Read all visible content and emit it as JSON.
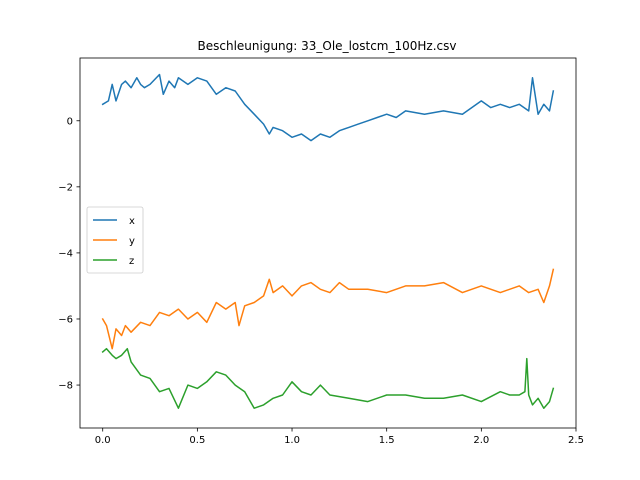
{
  "chart_data": {
    "type": "line",
    "title": "Beschleunigung: 33_Ole_lostcm_100Hz.csv",
    "xlabel": "",
    "ylabel": "",
    "xlim": [
      -0.12,
      2.5
    ],
    "ylim": [
      -9.3,
      1.9
    ],
    "xticks": [
      0.0,
      0.5,
      1.0,
      1.5,
      2.0,
      2.5
    ],
    "xtick_labels": [
      "0.0",
      "0.5",
      "1.0",
      "1.5",
      "2.0",
      "2.5"
    ],
    "yticks": [
      0,
      -2,
      -4,
      -6,
      -8
    ],
    "ytick_labels": [
      "0",
      "−2",
      "−4",
      "−6",
      "−8"
    ],
    "grid": false,
    "legend": {
      "placement": "center-left"
    },
    "series": [
      {
        "name": "x",
        "color": "#1f77b4",
        "x": [
          0.0,
          0.03,
          0.05,
          0.07,
          0.1,
          0.12,
          0.15,
          0.18,
          0.2,
          0.22,
          0.25,
          0.3,
          0.32,
          0.35,
          0.38,
          0.4,
          0.45,
          0.5,
          0.55,
          0.6,
          0.65,
          0.7,
          0.75,
          0.8,
          0.85,
          0.88,
          0.9,
          0.95,
          1.0,
          1.05,
          1.1,
          1.15,
          1.2,
          1.25,
          1.3,
          1.35,
          1.4,
          1.45,
          1.5,
          1.55,
          1.6,
          1.7,
          1.8,
          1.9,
          2.0,
          2.05,
          2.1,
          2.15,
          2.2,
          2.25,
          2.27,
          2.3,
          2.33,
          2.36,
          2.38
        ],
        "y": [
          0.5,
          0.6,
          1.1,
          0.6,
          1.1,
          1.2,
          1.0,
          1.3,
          1.1,
          1.0,
          1.1,
          1.4,
          0.8,
          1.2,
          1.0,
          1.3,
          1.1,
          1.3,
          1.2,
          0.8,
          1.0,
          0.9,
          0.5,
          0.2,
          -0.1,
          -0.4,
          -0.2,
          -0.3,
          -0.5,
          -0.4,
          -0.6,
          -0.4,
          -0.5,
          -0.3,
          -0.2,
          -0.1,
          0.0,
          0.1,
          0.2,
          0.1,
          0.3,
          0.2,
          0.3,
          0.2,
          0.6,
          0.4,
          0.5,
          0.4,
          0.5,
          0.3,
          1.3,
          0.2,
          0.5,
          0.3,
          0.9
        ]
      },
      {
        "name": "y",
        "color": "#ff7f0e",
        "x": [
          0.0,
          0.02,
          0.05,
          0.07,
          0.1,
          0.12,
          0.15,
          0.2,
          0.25,
          0.3,
          0.35,
          0.4,
          0.45,
          0.5,
          0.55,
          0.6,
          0.65,
          0.7,
          0.72,
          0.75,
          0.8,
          0.85,
          0.88,
          0.9,
          0.95,
          1.0,
          1.05,
          1.1,
          1.15,
          1.2,
          1.25,
          1.3,
          1.4,
          1.5,
          1.6,
          1.7,
          1.8,
          1.9,
          2.0,
          2.1,
          2.2,
          2.25,
          2.3,
          2.33,
          2.36,
          2.38
        ],
        "y": [
          -6.0,
          -6.2,
          -6.9,
          -6.3,
          -6.5,
          -6.2,
          -6.4,
          -6.1,
          -6.2,
          -5.8,
          -5.9,
          -5.7,
          -6.0,
          -5.8,
          -6.1,
          -5.5,
          -5.7,
          -5.5,
          -6.2,
          -5.6,
          -5.5,
          -5.3,
          -4.8,
          -5.2,
          -5.0,
          -5.3,
          -5.0,
          -4.9,
          -5.1,
          -5.2,
          -4.9,
          -5.1,
          -5.1,
          -5.2,
          -5.0,
          -5.0,
          -4.9,
          -5.2,
          -5.0,
          -5.2,
          -5.0,
          -5.2,
          -5.1,
          -5.5,
          -5.0,
          -4.5
        ]
      },
      {
        "name": "z",
        "color": "#2ca02c",
        "x": [
          0.0,
          0.02,
          0.05,
          0.07,
          0.1,
          0.13,
          0.15,
          0.2,
          0.25,
          0.3,
          0.35,
          0.4,
          0.45,
          0.5,
          0.55,
          0.6,
          0.65,
          0.7,
          0.75,
          0.8,
          0.85,
          0.9,
          0.95,
          1.0,
          1.05,
          1.1,
          1.15,
          1.2,
          1.3,
          1.4,
          1.5,
          1.6,
          1.7,
          1.8,
          1.9,
          2.0,
          2.1,
          2.15,
          2.2,
          2.23,
          2.24,
          2.25,
          2.27,
          2.3,
          2.33,
          2.36,
          2.38
        ],
        "y": [
          -7.0,
          -6.9,
          -7.1,
          -7.2,
          -7.1,
          -6.9,
          -7.3,
          -7.7,
          -7.8,
          -8.2,
          -8.1,
          -8.7,
          -8.0,
          -8.1,
          -7.9,
          -7.6,
          -7.7,
          -8.0,
          -8.2,
          -8.7,
          -8.6,
          -8.4,
          -8.3,
          -7.9,
          -8.2,
          -8.3,
          -8.0,
          -8.3,
          -8.4,
          -8.5,
          -8.3,
          -8.3,
          -8.4,
          -8.4,
          -8.3,
          -8.5,
          -8.2,
          -8.3,
          -8.3,
          -8.2,
          -7.2,
          -8.3,
          -8.6,
          -8.4,
          -8.7,
          -8.5,
          -8.1
        ]
      }
    ]
  }
}
